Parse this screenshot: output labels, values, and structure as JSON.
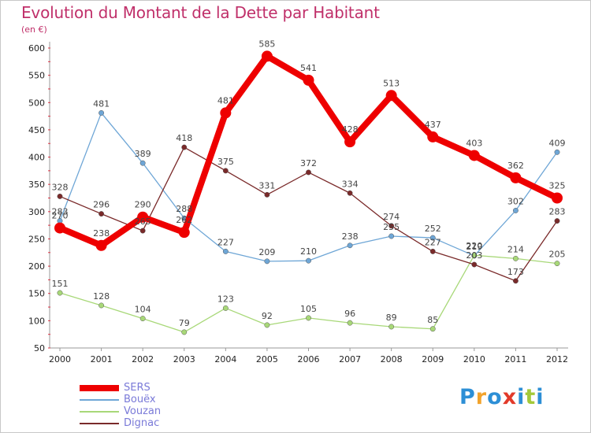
{
  "header": {
    "title": "Evolution du Montant de la Dette par Habitant",
    "subtitle": "(en €)"
  },
  "brand": {
    "letters": [
      "P",
      "r",
      "o",
      "x",
      "i",
      "t",
      "i"
    ],
    "colors": [
      "#2d8fd6",
      "#f2a32c",
      "#2d8fd6",
      "#e23a2a",
      "#2d8fd6",
      "#a4c93a",
      "#2d8fd6"
    ]
  },
  "chart_data": {
    "type": "line",
    "title": "Evolution du Montant de la Dette par Habitant",
    "subtitle": "(en €)",
    "x": [
      "2000",
      "2001",
      "2002",
      "2003",
      "2004",
      "2005",
      "2006",
      "2007",
      "2008",
      "2009",
      "2010",
      "2011",
      "2012"
    ],
    "ylim": [
      50,
      600
    ],
    "yticks": [
      50,
      100,
      150,
      200,
      250,
      300,
      350,
      400,
      450,
      500,
      550,
      600
    ],
    "grid": false,
    "legend": "bottom-left",
    "series": [
      {
        "name": "SERS",
        "color": "#ee0000",
        "values": [
          270,
          238,
          290,
          262,
          481,
          585,
          541,
          428,
          513,
          437,
          403,
          362,
          325
        ]
      },
      {
        "name": "Bouëx",
        "color": "#6ea6d6",
        "values": [
          283,
          481,
          389,
          288,
          227,
          209,
          210,
          238,
          255,
          252,
          219,
          302,
          409
        ]
      },
      {
        "name": "Vouzan",
        "color": "#a8d878",
        "values": [
          151,
          128,
          104,
          79,
          123,
          92,
          105,
          96,
          89,
          85,
          220,
          214,
          205
        ]
      },
      {
        "name": "Dignac",
        "color": "#7a2a2a",
        "values": [
          328,
          296,
          265,
          418,
          375,
          331,
          372,
          334,
          274,
          227,
          203,
          173,
          283
        ]
      }
    ]
  }
}
